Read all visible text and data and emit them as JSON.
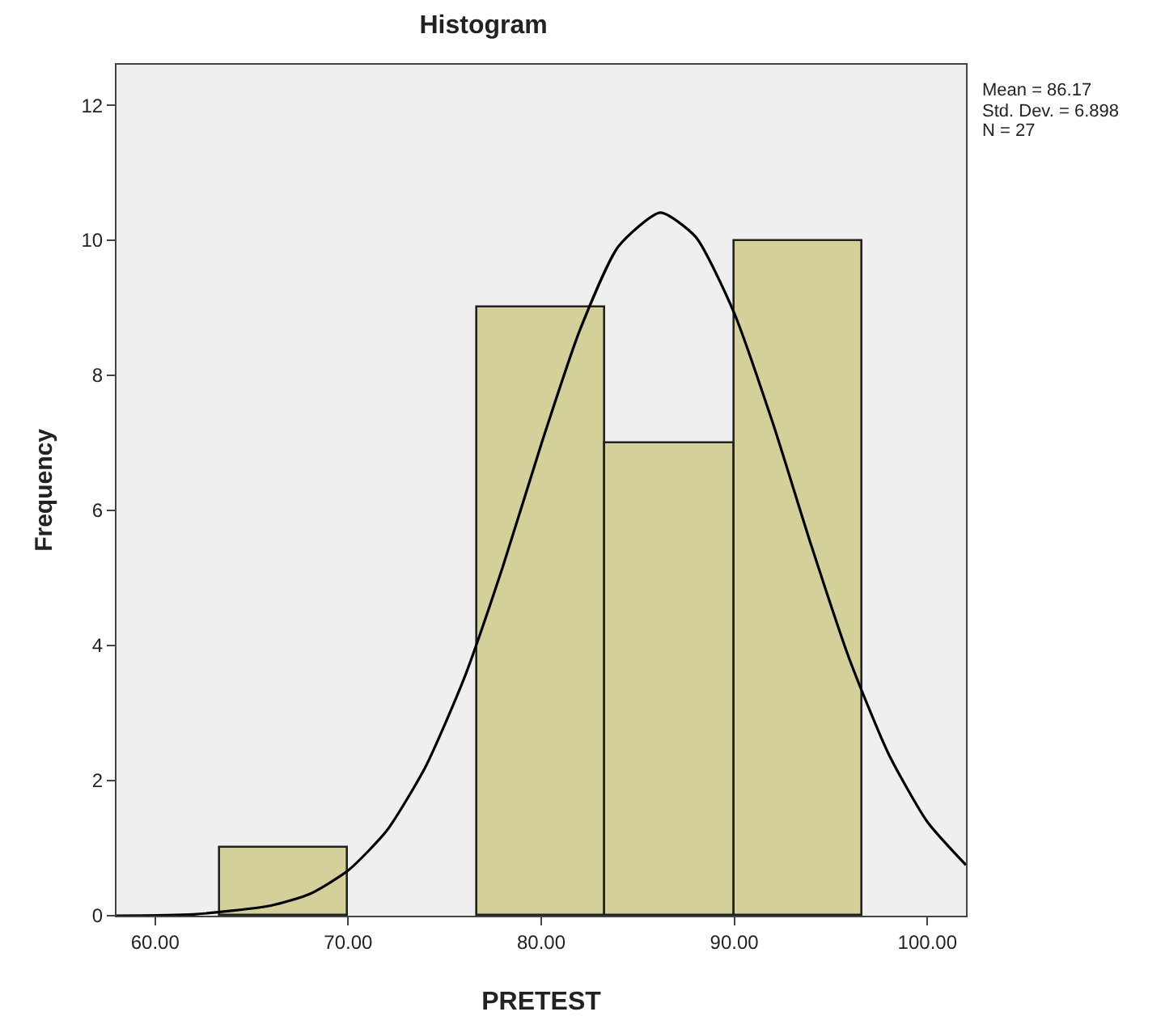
{
  "chart_data": {
    "type": "histogram",
    "title": "Histogram",
    "xlabel": "PRETEST",
    "ylabel": "Frequency",
    "bins": [
      63.33,
      70,
      76.67,
      83.33,
      90,
      96.67
    ],
    "values": [
      1,
      0,
      9,
      7,
      10
    ],
    "color": "#d4d09a",
    "series": [
      {
        "type": "line",
        "color": "#000000",
        "x": [
          58,
          62,
          66,
          68,
          70,
          72,
          74,
          76,
          78,
          80,
          82,
          84,
          86.17,
          88,
          90,
          92,
          94,
          96,
          98,
          100,
          102
        ],
        "values": [
          0,
          0.02,
          0.15,
          0.32,
          0.67,
          1.26,
          2.2,
          3.51,
          5.16,
          6.98,
          8.67,
          9.91,
          10.41,
          10.05,
          8.92,
          7.29,
          5.47,
          3.77,
          2.39,
          1.39,
          0.75
        ]
      }
    ],
    "xlim": [
      58,
      102
    ],
    "xticks": [
      {
        "value": 60,
        "label": "60.00"
      },
      {
        "value": 70,
        "label": "70.00"
      },
      {
        "value": 80,
        "label": "80.00"
      },
      {
        "value": 90,
        "label": "90.00"
      },
      {
        "value": 100,
        "label": "100.00"
      }
    ],
    "ylim": [
      0,
      12.6
    ],
    "yticks": [
      0,
      2,
      4,
      6,
      8,
      10,
      12
    ],
    "annotations": [
      "Mean = 86.17",
      "Std. Dev. = 6.898",
      "N = 27"
    ]
  }
}
